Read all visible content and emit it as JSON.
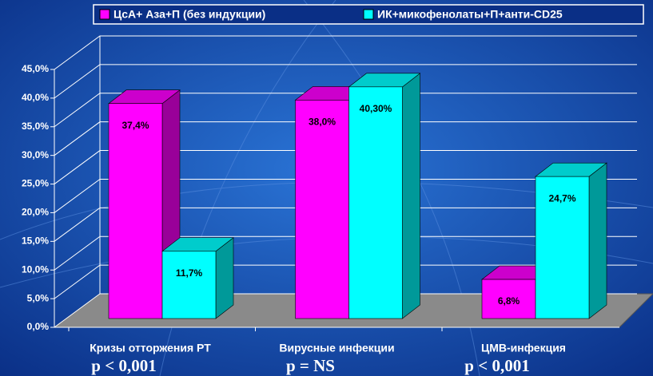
{
  "chart_data": {
    "type": "bar3d",
    "categories": [
      "Кризы отторжения РТ",
      "Вирусные инфекции",
      "ЦМВ-инфекция"
    ],
    "annotations": [
      "p < 0,001",
      "p = NS",
      "p < 0,001"
    ],
    "series": [
      {
        "name": "ЦсА+ Аза+П (без индукции)",
        "color": "#ff00ff",
        "values": [
          37.4,
          38.0,
          6.8
        ],
        "value_labels": [
          "37,4%",
          "38,0%",
          "6,8%"
        ]
      },
      {
        "name": "ИК+микофенолаты+П+анти-CD25",
        "color": "#00ffff",
        "values": [
          11.7,
          40.3,
          24.7
        ],
        "value_labels": [
          "11,7%",
          "40,30%",
          "24,7%"
        ]
      }
    ],
    "ylim": [
      0,
      45
    ],
    "yticks": [
      {
        "value": 0,
        "label": "0,0%"
      },
      {
        "value": 5,
        "label": "5,0%"
      },
      {
        "value": 10,
        "label": "10,0%"
      },
      {
        "value": 15,
        "label": "15,0%"
      },
      {
        "value": 20,
        "label": "20,0%"
      },
      {
        "value": 25,
        "label": "25,0%"
      },
      {
        "value": 30,
        "label": "30,0%"
      },
      {
        "value": 35,
        "label": "35,0%"
      },
      {
        "value": 40,
        "label": "40,0%"
      },
      {
        "value": 45,
        "label": "45,0%"
      }
    ],
    "grid": true,
    "legend": "top"
  }
}
